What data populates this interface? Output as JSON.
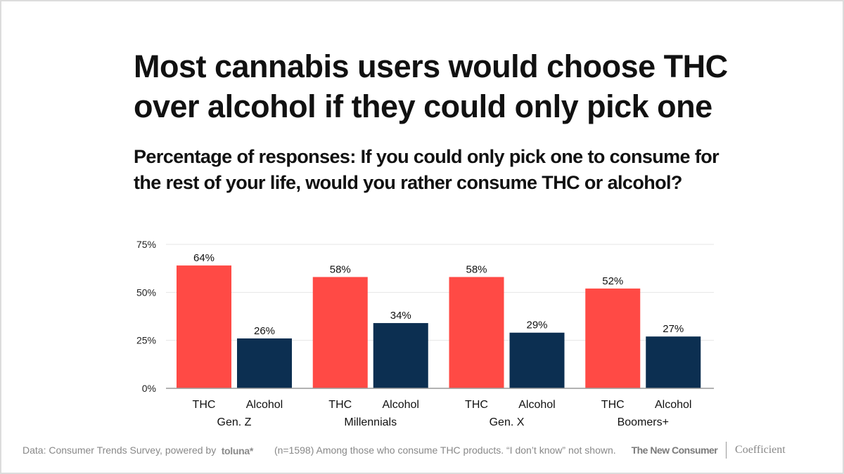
{
  "title": "Most cannabis users would choose THC over alcohol if they could only pick one",
  "subtitle": "Percentage of responses: If you could only pick one to consume for the rest of your life, would you rather consume THC or alcohol?",
  "footer": {
    "source": "Data: Consumer Trends Survey, powered by",
    "source_brand": "toluna",
    "source_brand_mark": "*",
    "note": "(n=1598) Among those who consume THC products. “I don’t know” not shown.",
    "brand_primary": "The New Consumer",
    "brand_secondary": "Coefficient"
  },
  "colors": {
    "thc": "#FF4A45",
    "alcohol": "#0C2F51",
    "grid": "#e6e6e6",
    "axis": "#999999"
  },
  "chart_data": {
    "type": "bar",
    "title": "Most cannabis users would choose THC over alcohol if they could only pick one",
    "subtitle": "Percentage of responses: If you could only pick one to consume for the rest of your life, would you rather consume THC or alcohol?",
    "xlabel": "",
    "ylabel": "",
    "categories": [
      "Gen. Z",
      "Millennials",
      "Gen. X",
      "Boomers+"
    ],
    "series": [
      {
        "name": "THC",
        "values": [
          64,
          58,
          58,
          52
        ],
        "labels": [
          "64%",
          "58%",
          "58%",
          "52%"
        ]
      },
      {
        "name": "Alcohol",
        "values": [
          26,
          34,
          29,
          27
        ],
        "labels": [
          "26%",
          "34%",
          "29%",
          "27%"
        ]
      }
    ],
    "ylim": [
      0,
      75
    ],
    "yticks": [
      0,
      25,
      50,
      75
    ],
    "ytick_labels": [
      "0%",
      "25%",
      "50%",
      "75%"
    ],
    "grid": true,
    "legend": "none (series names shown as sub-category labels under each bar)"
  }
}
